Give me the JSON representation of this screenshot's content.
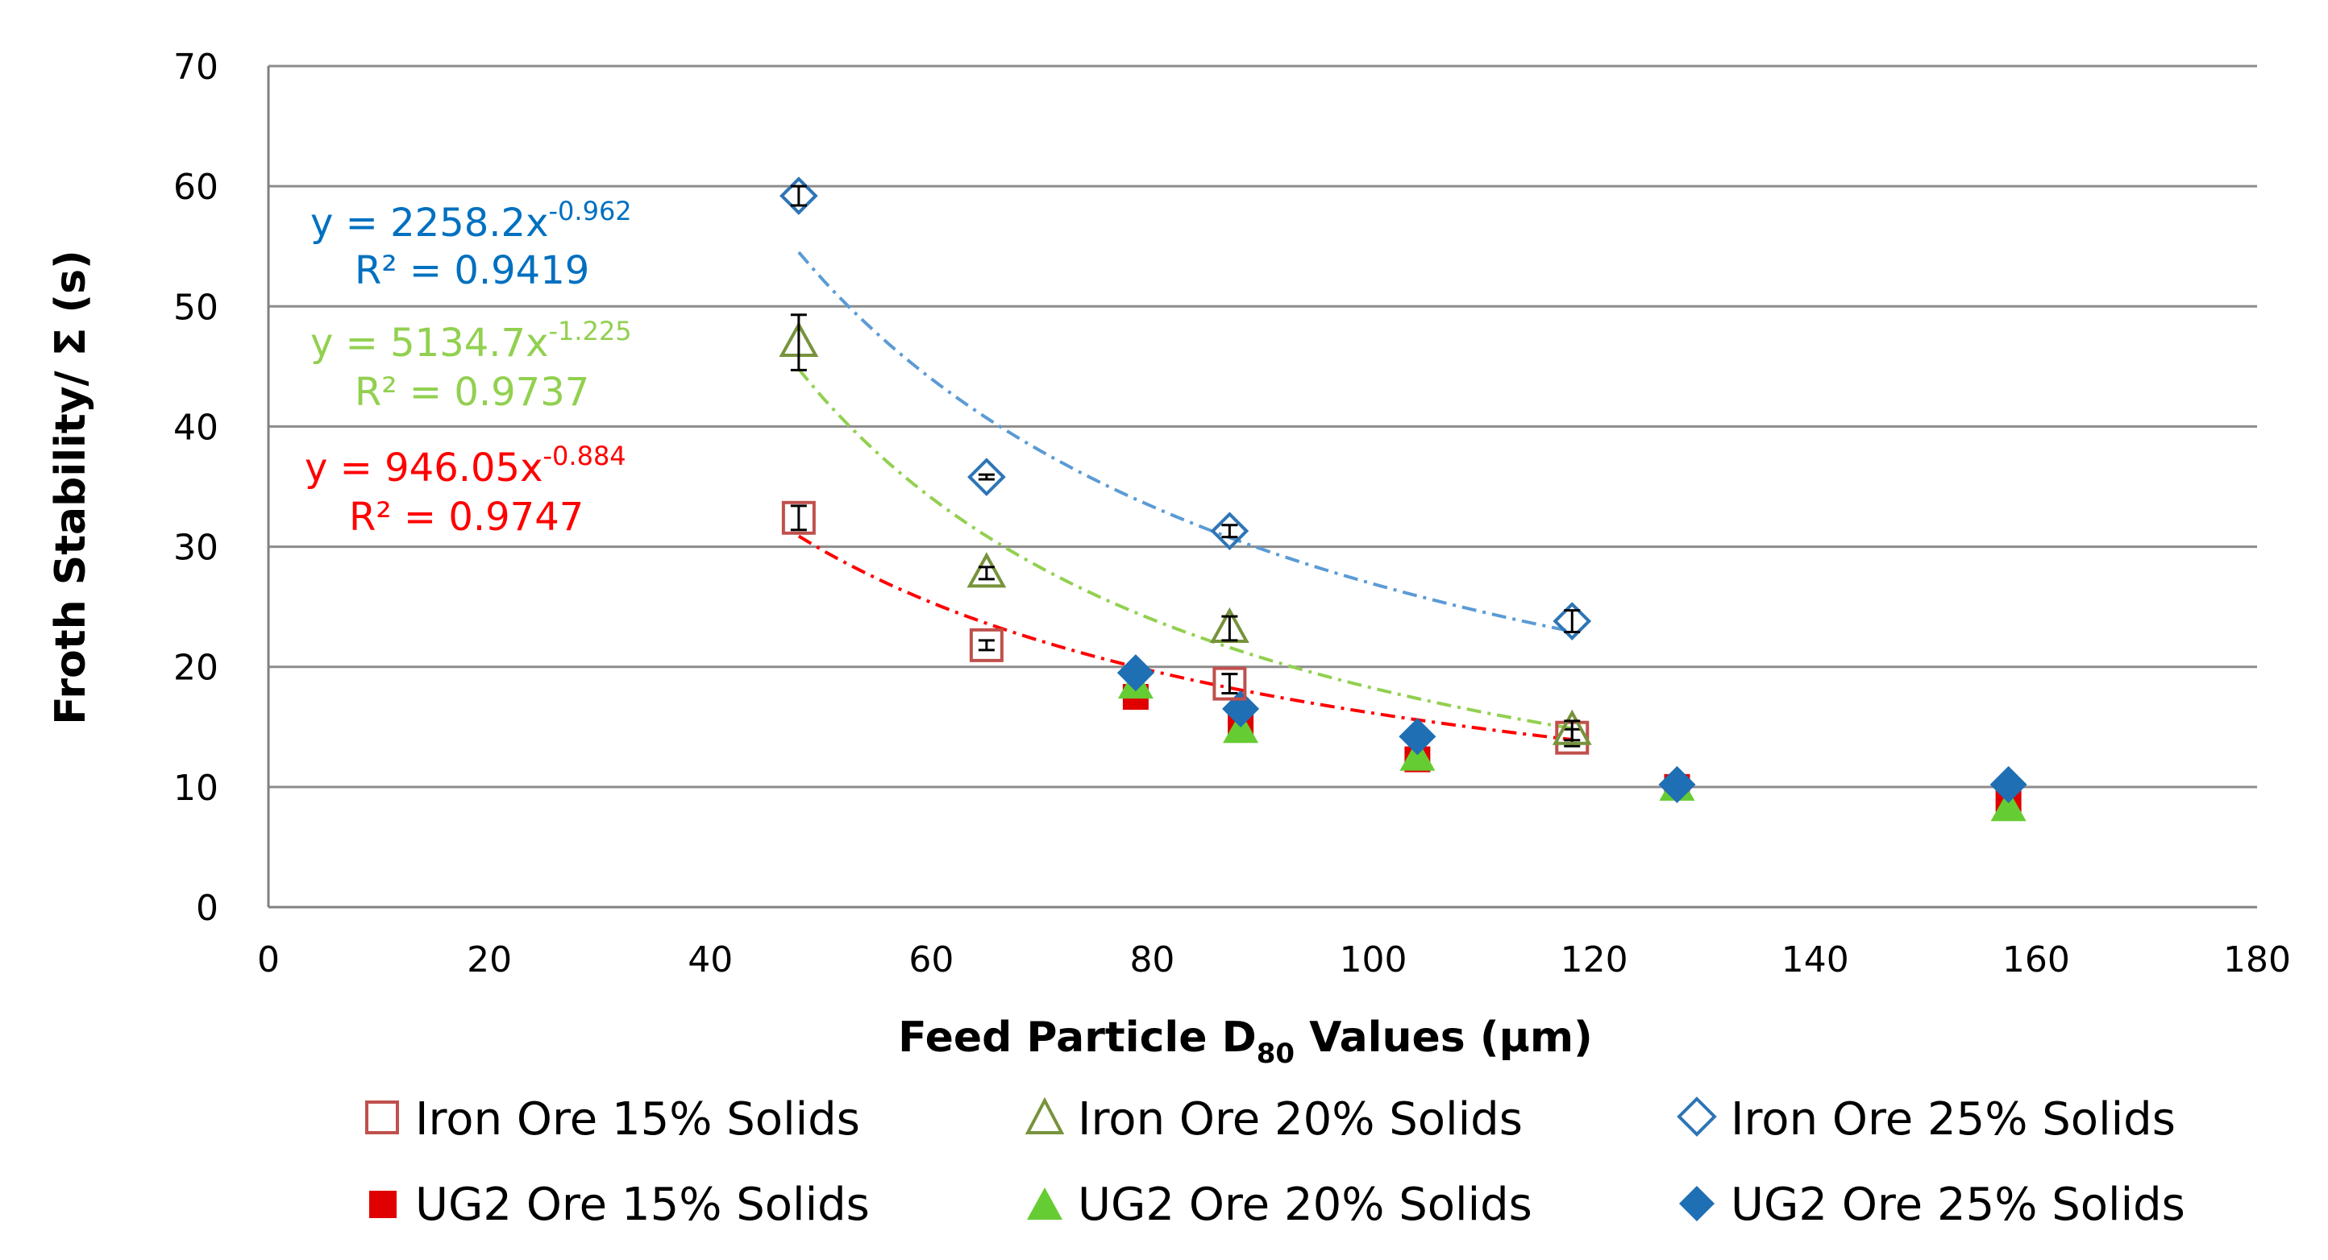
{
  "chart_data": {
    "type": "scatter",
    "title": "",
    "xlabel_prefix": "Feed Particle D",
    "xlabel_sub": "80",
    "xlabel_suffix": " Values (μm)",
    "ylabel": "Froth Stability/ Σ (s)",
    "xlim": [
      0,
      180
    ],
    "ylim": [
      0,
      70
    ],
    "x_ticks": [
      0,
      20,
      40,
      60,
      80,
      100,
      120,
      140,
      160,
      180
    ],
    "y_ticks": [
      0,
      10,
      20,
      30,
      40,
      50,
      60,
      70
    ],
    "grid": "horizontal",
    "legend_position": "bottom",
    "series": [
      {
        "name": "Iron Ore 15% Solids",
        "marker": "square-open",
        "color": "#c0504d",
        "x": [
          48,
          65,
          87,
          118
        ],
        "y": [
          32.4,
          21.8,
          18.6,
          14.1
        ],
        "err": [
          1.0,
          0.4,
          0.8,
          0.7
        ]
      },
      {
        "name": "Iron Ore 20% Solids",
        "marker": "triangle-open",
        "color": "#77933c",
        "x": [
          48,
          65,
          87,
          118
        ],
        "y": [
          47.0,
          27.8,
          23.2,
          14.7
        ],
        "err": [
          2.3,
          0.5,
          1.0,
          0.8
        ]
      },
      {
        "name": "Iron Ore 25% Solids",
        "marker": "diamond-open",
        "color": "#2e75b6",
        "x": [
          48,
          65,
          87,
          118
        ],
        "y": [
          59.2,
          35.8,
          31.3,
          23.8
        ],
        "err": [
          0.8,
          0.2,
          0.5,
          0.9
        ]
      },
      {
        "name": "UG2 Ore 15% Solids",
        "marker": "square-filled",
        "color": "#e00000",
        "x": [
          78.5,
          88,
          104,
          127.5,
          157.5
        ],
        "y": [
          17.5,
          15.0,
          12.3,
          10.0,
          9.0
        ]
      },
      {
        "name": "UG2 Ore 20% Solids",
        "marker": "triangle-filled",
        "color": "#66cc33",
        "x": [
          78.5,
          88,
          104,
          127.5,
          157.5
        ],
        "y": [
          18.5,
          14.8,
          12.5,
          10.0,
          8.3
        ]
      },
      {
        "name": "UG2 Ore 25% Solids",
        "marker": "diamond-filled",
        "color": "#1f6fb4",
        "x": [
          78.5,
          88,
          104,
          127.5,
          157.5
        ],
        "y": [
          19.5,
          16.5,
          14.2,
          10.2,
          10.2
        ]
      }
    ],
    "trendlines": [
      {
        "series": "Iron Ore 25% Solids",
        "type": "power",
        "a": 2258.2,
        "b": -0.962,
        "x_range": [
          48,
          118
        ],
        "color": "#5b9bd5",
        "eq_main": "y = 2258.2x",
        "eq_exp": "-0.962",
        "r2": "R² = 0.9419"
      },
      {
        "series": "Iron Ore 20% Solids",
        "type": "power",
        "a": 5134.7,
        "b": -1.225,
        "x_range": [
          48,
          118
        ],
        "color": "#92d050",
        "eq_main": "y = 5134.7x",
        "eq_exp": "-1.225",
        "r2": "R² = 0.9737"
      },
      {
        "series": "Iron Ore 15% Solids",
        "type": "power",
        "a": 946.05,
        "b": -0.884,
        "x_range": [
          48,
          118
        ],
        "color": "#ff0000",
        "eq_main": "y = 946.05x",
        "eq_exp": "-0.884",
        "r2": "R² = 0.9747"
      }
    ]
  },
  "colors": {
    "grid": "#8c8c8c",
    "axis": "#808080",
    "error_bar": "#000000",
    "eq_blue": "#0070c0",
    "eq_green": "#92d050",
    "eq_red": "#ff0000"
  }
}
